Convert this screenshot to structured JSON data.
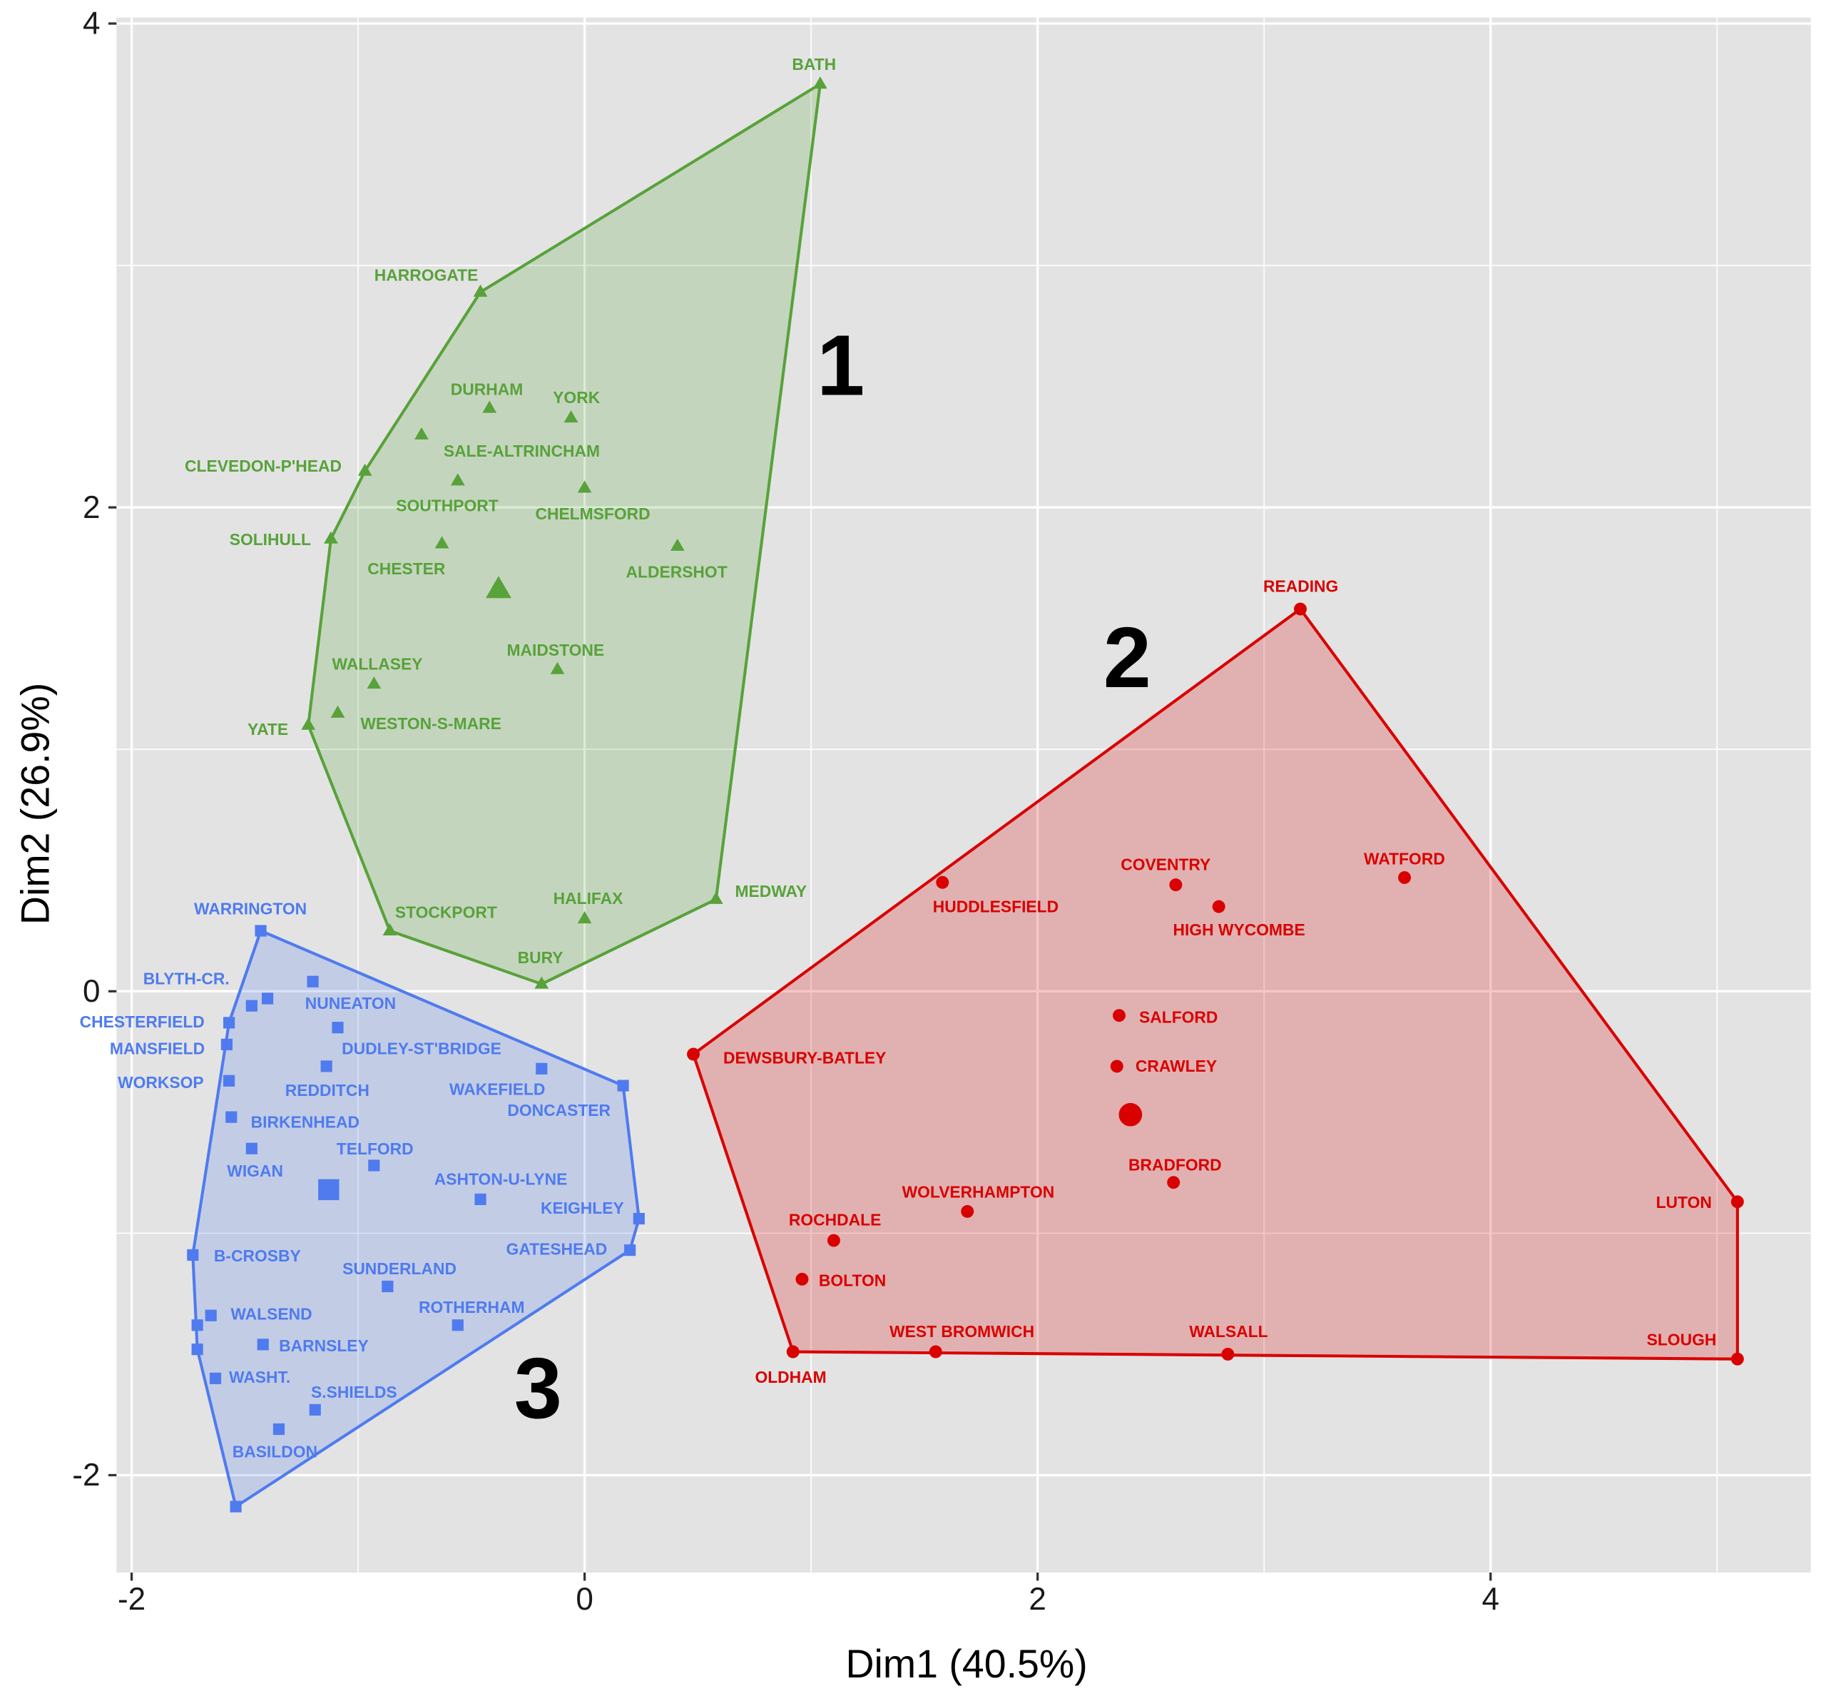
{
  "chart_data": {
    "type": "scatter",
    "xlabel": "Dim1 (40.5%)",
    "ylabel": "Dim2 (26.9%)",
    "xlim": [
      -2.0,
      5.2
    ],
    "ylim": [
      -2.35,
      4.0
    ],
    "x_ticks": [
      "-2",
      "0",
      "2",
      "4"
    ],
    "y_ticks": [
      "-2",
      "0",
      "2",
      "4"
    ],
    "grid": true,
    "background": "#e3e3e3",
    "series": [
      {
        "cluster": "1",
        "color": "#58a23a",
        "marker": "triangle",
        "convex_hull": true,
        "center": {
          "x": -0.38,
          "y": 1.66
        },
        "points": [
          {
            "label": "BATH",
            "x": 1.04,
            "y": 3.75
          },
          {
            "label": "HARROGATE",
            "x": -0.46,
            "y": 2.89
          },
          {
            "label": "DURHAM",
            "x": -0.42,
            "y": 2.41
          },
          {
            "label": "YORK",
            "x": -0.06,
            "y": 2.37
          },
          {
            "label": "SALE-ALTRINCHAM",
            "x": -0.72,
            "y": 2.3
          },
          {
            "label": "CLEVEDON-P'HEAD",
            "x": -0.97,
            "y": 2.15
          },
          {
            "label": "SOUTHPORT",
            "x": -0.56,
            "y": 2.11
          },
          {
            "label": "CHELMSFORD",
            "x": 0.0,
            "y": 2.08
          },
          {
            "label": "SOLIHULL",
            "x": -1.12,
            "y": 1.87
          },
          {
            "label": "CHESTER",
            "x": -0.63,
            "y": 1.85
          },
          {
            "label": "ALDERSHOT",
            "x": 0.41,
            "y": 1.84
          },
          {
            "label": "MAIDSTONE",
            "x": -0.12,
            "y": 1.33
          },
          {
            "label": "WALLASEY",
            "x": -0.93,
            "y": 1.27
          },
          {
            "label": "WESTON-S-MARE",
            "x": -1.09,
            "y": 1.15
          },
          {
            "label": "YATE",
            "x": -1.22,
            "y": 1.1
          },
          {
            "label": "MEDWAY",
            "x": 0.58,
            "y": 0.38
          },
          {
            "label": "HALIFAX",
            "x": 0.0,
            "y": 0.3
          },
          {
            "label": "STOCKPORT",
            "x": -0.86,
            "y": 0.25
          },
          {
            "label": "BURY",
            "x": -0.19,
            "y": 0.03
          }
        ]
      },
      {
        "cluster": "2",
        "color": "#d90000",
        "marker": "circle",
        "convex_hull": true,
        "center": {
          "x": 2.41,
          "y": -0.51
        },
        "points": [
          {
            "label": "READING",
            "x": 3.16,
            "y": 1.58
          },
          {
            "label": "HUDDLESFIELD",
            "x": 1.58,
            "y": 0.45
          },
          {
            "label": "COVENTRY",
            "x": 2.61,
            "y": 0.44
          },
          {
            "label": "WATFORD",
            "x": 3.62,
            "y": 0.47
          },
          {
            "label": "HIGH WYCOMBE",
            "x": 2.8,
            "y": 0.35
          },
          {
            "label": "SALFORD",
            "x": 2.36,
            "y": -0.1
          },
          {
            "label": "DEWSBURY-BATLEY",
            "x": 0.48,
            "y": -0.26
          },
          {
            "label": "CRAWLEY",
            "x": 2.35,
            "y": -0.31
          },
          {
            "label": "BRADFORD",
            "x": 2.6,
            "y": -0.79
          },
          {
            "label": "WOLVERHAMPTON",
            "x": 1.69,
            "y": -0.91
          },
          {
            "label": "LUTON",
            "x": 5.09,
            "y": -0.87
          },
          {
            "label": "ROCHDALE",
            "x": 1.1,
            "y": -1.03
          },
          {
            "label": "BOLTON",
            "x": 0.96,
            "y": -1.19
          },
          {
            "label": "WEST BROMWICH",
            "x": 1.55,
            "y": -1.49
          },
          {
            "label": "OLDHAM",
            "x": 0.92,
            "y": -1.49
          },
          {
            "label": "WALSALL",
            "x": 2.84,
            "y": -1.5
          },
          {
            "label": "SLOUGH",
            "x": 5.09,
            "y": -1.52
          }
        ]
      },
      {
        "cluster": "3",
        "color": "#4f7bef",
        "marker": "square",
        "convex_hull": true,
        "center": {
          "x": -1.13,
          "y": -0.82
        },
        "points": [
          {
            "label": "WARRINGTON",
            "x": -1.43,
            "y": 0.25
          },
          {
            "label": "NUNEATON",
            "x": -1.2,
            "y": 0.04
          },
          {
            "label": "BLYTH-CR.",
            "x": -1.4,
            "y": -0.03
          },
          {
            "label": "",
            "x": -1.47,
            "y": -0.06
          },
          {
            "label": "CHESTERFIELD",
            "x": -1.57,
            "y": -0.13
          },
          {
            "label": "DUDLEY-ST'BRIDGE",
            "x": -1.09,
            "y": -0.15
          },
          {
            "label": "MANSFIELD",
            "x": -1.58,
            "y": -0.22
          },
          {
            "label": "REDDITCH",
            "x": -1.14,
            "y": -0.31
          },
          {
            "label": "WORKSOP",
            "x": -1.57,
            "y": -0.37
          },
          {
            "label": "WAKEFIELD",
            "x": -0.19,
            "y": -0.32
          },
          {
            "label": "DONCASTER",
            "x": 0.17,
            "y": -0.39
          },
          {
            "label": "BIRKENHEAD",
            "x": -1.56,
            "y": -0.52
          },
          {
            "label": "WIGAN",
            "x": -1.47,
            "y": -0.65
          },
          {
            "label": "TELFORD",
            "x": -0.93,
            "y": -0.72
          },
          {
            "label": "ASHTON-U-LYNE",
            "x": -0.46,
            "y": -0.86
          },
          {
            "label": "KEIGHLEY",
            "x": 0.24,
            "y": -0.94
          },
          {
            "label": "GATESHEAD",
            "x": 0.2,
            "y": -1.07
          },
          {
            "label": "B-CROSBY",
            "x": -1.73,
            "y": -1.09
          },
          {
            "label": "SUNDERLAND",
            "x": -0.87,
            "y": -1.22
          },
          {
            "label": "WALSEND",
            "x": -1.65,
            "y": -1.34
          },
          {
            "label": "",
            "x": -1.71,
            "y": -1.38
          },
          {
            "label": "ROTHERHAM",
            "x": -0.56,
            "y": -1.38
          },
          {
            "label": "BARNSLEY",
            "x": -1.42,
            "y": -1.46
          },
          {
            "label": "",
            "x": -1.71,
            "y": -1.48
          },
          {
            "label": "WASHT.",
            "x": -1.63,
            "y": -1.6
          },
          {
            "label": "S.SHIELDS",
            "x": -1.19,
            "y": -1.73
          },
          {
            "label": "BASILDON",
            "x": -1.35,
            "y": -1.81
          },
          {
            "label": "",
            "x": -1.54,
            "y": -2.13
          }
        ]
      }
    ]
  }
}
